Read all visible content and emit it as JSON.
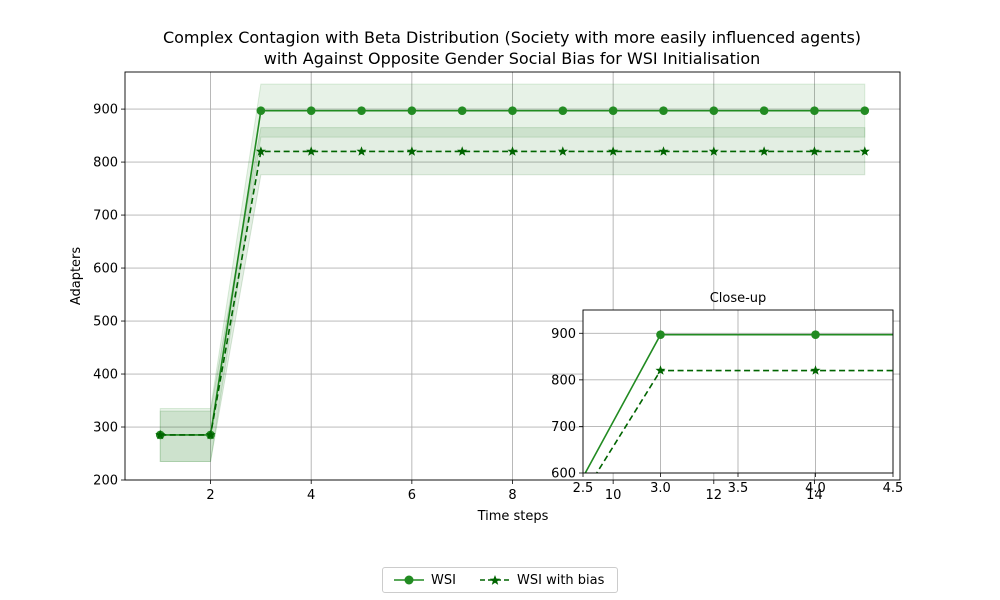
{
  "chart_data": [
    {
      "type": "line",
      "title": "Complex Contagion with Beta Distribution (Society with more easily influenced agents)\nwith Against Opposite Gender Social Bias for WSI Initialisation",
      "xlabel": "Time steps",
      "ylabel": "Adapters",
      "xlim": [
        0.3,
        15.7
      ],
      "ylim": [
        200,
        970
      ],
      "xticks": [
        2,
        4,
        6,
        8,
        10,
        12,
        14
      ],
      "yticks": [
        200,
        300,
        400,
        500,
        600,
        700,
        800,
        900
      ],
      "grid": true,
      "legend": "bottom-center",
      "x": [
        1,
        2,
        3,
        4,
        5,
        6,
        7,
        8,
        9,
        10,
        11,
        12,
        13,
        14,
        15
      ],
      "series": [
        {
          "name": "WSI",
          "values": [
            285,
            285,
            897,
            897,
            897,
            897,
            897,
            897,
            897,
            897,
            897,
            897,
            897,
            897,
            897
          ],
          "lower": [
            235,
            235,
            847,
            847,
            847,
            847,
            847,
            847,
            847,
            847,
            847,
            847,
            847,
            847,
            847
          ],
          "upper": [
            335,
            335,
            947,
            947,
            947,
            947,
            947,
            947,
            947,
            947,
            947,
            947,
            947,
            947,
            947
          ],
          "color": "#228b22",
          "linestyle": "solid",
          "marker": "circle"
        },
        {
          "name": "WSI with bias",
          "values": [
            285,
            285,
            820,
            820,
            820,
            820,
            820,
            820,
            820,
            820,
            820,
            820,
            820,
            820,
            820
          ],
          "lower": [
            235,
            235,
            776,
            776,
            776,
            776,
            776,
            776,
            776,
            776,
            776,
            776,
            776,
            776,
            776
          ],
          "upper": [
            330,
            330,
            865,
            865,
            865,
            865,
            865,
            865,
            865,
            865,
            865,
            865,
            865,
            865,
            865
          ],
          "color": "#006400",
          "linestyle": "dashed",
          "marker": "star"
        }
      ]
    },
    {
      "type": "line",
      "title": "Close-up",
      "xlim": [
        2.5,
        4.5
      ],
      "ylim": [
        600,
        950
      ],
      "xticks": [
        "2.5",
        "3.0",
        "3.5",
        "4.0",
        "4.5"
      ],
      "yticks": [
        600,
        700,
        800,
        900
      ],
      "grid": true
    }
  ]
}
